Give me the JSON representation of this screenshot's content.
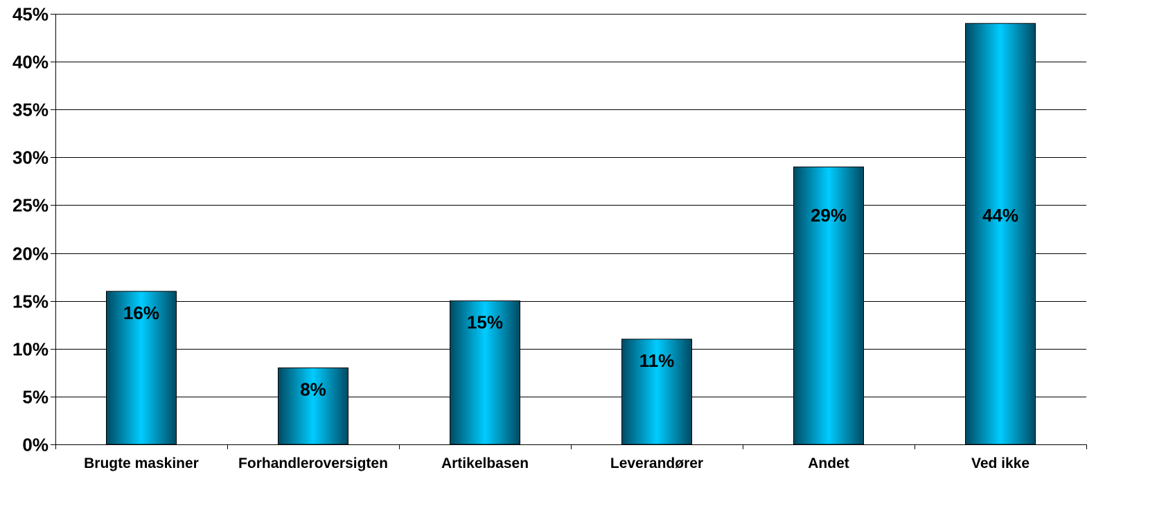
{
  "chart_data": {
    "type": "bar",
    "categories": [
      "Brugte maskiner",
      "Forhandleroversigten",
      "Artikelbasen",
      "Leverandører",
      "Andet",
      "Ved ikke"
    ],
    "values": [
      16,
      8,
      15,
      11,
      29,
      44
    ],
    "data_labels": [
      "16%",
      "8%",
      "15%",
      "11%",
      "29%",
      "44%"
    ],
    "y_ticks": [
      0,
      5,
      10,
      15,
      20,
      25,
      30,
      35,
      40,
      45
    ],
    "y_tick_labels": [
      "0%",
      "5%",
      "10%",
      "15%",
      "20%",
      "25%",
      "30%",
      "35%",
      "40%",
      "45%"
    ],
    "ylim": [
      0,
      45
    ],
    "grid": true,
    "legend": "none",
    "colors": {
      "bar_edge": "#004a63",
      "bar_mid": "#00ccff",
      "bar_outline": "#000000",
      "gridline": "#000000",
      "axis": "#000000"
    }
  }
}
